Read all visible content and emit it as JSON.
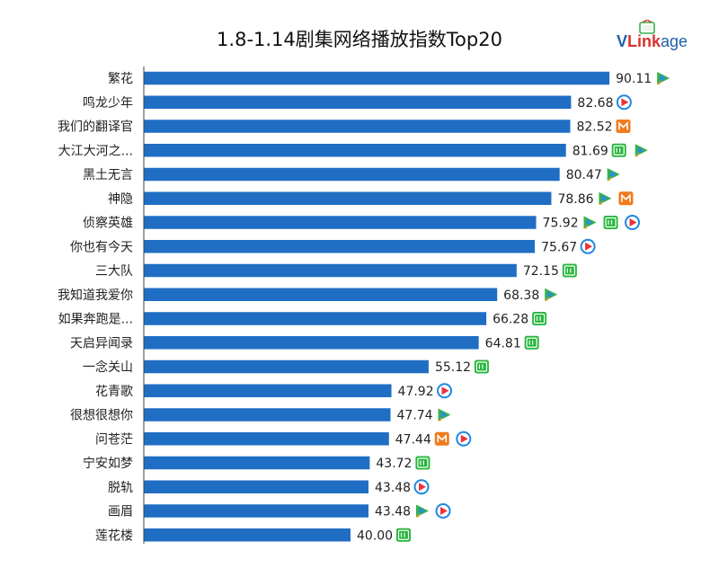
{
  "colors": {
    "bar": "#1f6ec4",
    "axis": "#444444",
    "tencent_green": "#36b24a",
    "tencent_blue": "#2b8fd6",
    "tencent_orange": "#f4a020",
    "iqiyi": "#27b63d",
    "youku_red": "#e8343b",
    "youku_blue": "#1e88e5",
    "mango": "#ef7b1e",
    "logo_v": "#d9332d",
    "logo_text": "#1f5fa8"
  },
  "logo": {
    "brand": "V",
    "red": "Link",
    "rest": "age"
  },
  "chart_data": {
    "type": "bar",
    "orientation": "horizontal",
    "title": "1.8-1.14剧集网络播放指数Top20",
    "xlabel": "",
    "ylabel": "",
    "xlim": [
      0,
      100
    ],
    "categories": [
      "繁花",
      "鸣龙少年",
      "我们的翻译官",
      "大江大河之...",
      "黑土无言",
      "神隐",
      "侦察英雄",
      "你也有今天",
      "三大队",
      "我知道我爱你",
      "如果奔跑是...",
      "天启异闻录",
      "一念关山",
      "花青歌",
      "很想很想你",
      "问苍茫",
      "宁安如梦",
      "脱轨",
      "画眉",
      "莲花楼"
    ],
    "values": [
      90.11,
      82.68,
      82.52,
      81.69,
      80.47,
      78.86,
      75.92,
      75.67,
      72.15,
      68.38,
      66.28,
      64.81,
      55.12,
      47.92,
      47.74,
      47.44,
      43.72,
      43.48,
      43.48,
      40.0
    ],
    "value_labels": [
      "90.11",
      "82.68",
      "82.52",
      "81.69",
      "80.47",
      "78.86",
      "75.92",
      "75.67",
      "72.15",
      "68.38",
      "66.28",
      "64.81",
      "55.12",
      "47.92",
      "47.74",
      "47.44",
      "43.72",
      "43.48",
      "43.48",
      "40.00"
    ],
    "platforms": [
      [
        "tencent-icon"
      ],
      [
        "youku-icon"
      ],
      [
        "mango-icon"
      ],
      [
        "iqiyi-icon",
        "tencent-icon"
      ],
      [
        "tencent-icon"
      ],
      [
        "tencent-icon",
        "mango-icon"
      ],
      [
        "tencent-icon",
        "iqiyi-icon",
        "youku-icon"
      ],
      [
        "youku-icon"
      ],
      [
        "iqiyi-icon"
      ],
      [
        "tencent-icon"
      ],
      [
        "iqiyi-icon"
      ],
      [
        "iqiyi-icon"
      ],
      [
        "iqiyi-icon"
      ],
      [
        "youku-icon"
      ],
      [
        "tencent-icon"
      ],
      [
        "mango-icon",
        "youku-icon"
      ],
      [
        "iqiyi-icon"
      ],
      [
        "youku-icon"
      ],
      [
        "tencent-icon",
        "youku-icon"
      ],
      [
        "iqiyi-icon"
      ]
    ],
    "grid": false,
    "legend": "none"
  }
}
